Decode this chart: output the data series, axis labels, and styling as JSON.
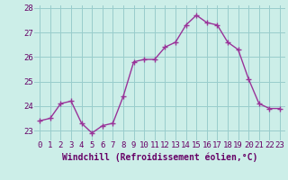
{
  "x": [
    0,
    1,
    2,
    3,
    4,
    5,
    6,
    7,
    8,
    9,
    10,
    11,
    12,
    13,
    14,
    15,
    16,
    17,
    18,
    19,
    20,
    21,
    22,
    23
  ],
  "y": [
    23.4,
    23.5,
    24.1,
    24.2,
    23.3,
    22.9,
    23.2,
    23.3,
    24.4,
    25.8,
    25.9,
    25.9,
    26.4,
    26.6,
    27.3,
    27.7,
    27.4,
    27.3,
    26.6,
    26.3,
    25.1,
    24.1,
    23.9,
    23.9
  ],
  "line_color": "#993399",
  "marker": "+",
  "marker_size": 4,
  "linewidth": 1.0,
  "bg_color": "#cceee8",
  "grid_color": "#99cccc",
  "xlabel": "Windchill (Refroidissement éolien,°C)",
  "xlabel_fontsize": 7,
  "xlabel_color": "#660066",
  "tick_color": "#660066",
  "tick_fontsize": 6.5,
  "ylim": [
    22.6,
    28.1
  ],
  "xlim": [
    -0.5,
    23.5
  ],
  "yticks": [
    23,
    24,
    25,
    26,
    27,
    28
  ]
}
